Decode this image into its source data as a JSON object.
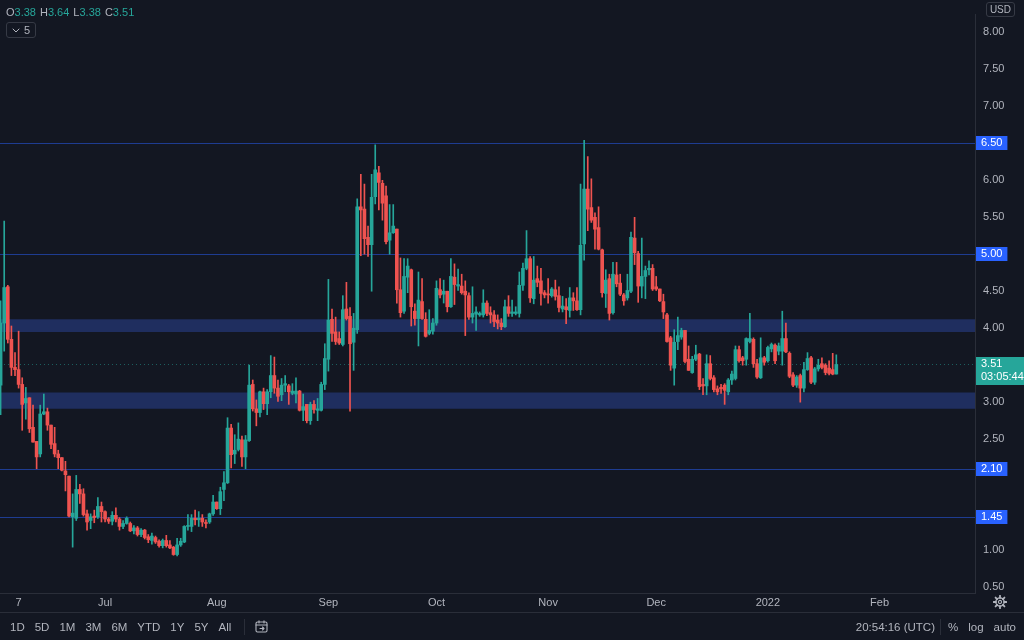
{
  "chart_data": {
    "type": "candlestick",
    "x": [
      "2021-06-02",
      "2021-06-03",
      "2021-06-04",
      "2021-06-05",
      "2021-06-06",
      "2021-06-07",
      "2021-06-08",
      "2021-06-09",
      "2021-06-10",
      "2021-06-11",
      "2021-06-12",
      "2021-06-13",
      "2021-06-14",
      "2021-06-15",
      "2021-06-16",
      "2021-06-17",
      "2021-06-18",
      "2021-06-19",
      "2021-06-20",
      "2021-06-21",
      "2021-06-22",
      "2021-06-23",
      "2021-06-24",
      "2021-06-25",
      "2021-06-26",
      "2021-06-27",
      "2021-06-28",
      "2021-06-29",
      "2021-06-30",
      "2021-07-01",
      "2021-07-02",
      "2021-07-03",
      "2021-07-04",
      "2021-07-05",
      "2021-07-06",
      "2021-07-07",
      "2021-07-08",
      "2021-07-09",
      "2021-07-10",
      "2021-07-11",
      "2021-07-12",
      "2021-07-13",
      "2021-07-14",
      "2021-07-15",
      "2021-07-16",
      "2021-07-17",
      "2021-07-18",
      "2021-07-19",
      "2021-07-20",
      "2021-07-21",
      "2021-07-22",
      "2021-07-23",
      "2021-07-24",
      "2021-07-25",
      "2021-07-26",
      "2021-07-27",
      "2021-07-28",
      "2021-07-29",
      "2021-07-30",
      "2021-07-31",
      "2021-08-01",
      "2021-08-02",
      "2021-08-03",
      "2021-08-04",
      "2021-08-05",
      "2021-08-06",
      "2021-08-07",
      "2021-08-08",
      "2021-08-09",
      "2021-08-10",
      "2021-08-11",
      "2021-08-12",
      "2021-08-13",
      "2021-08-14",
      "2021-08-15",
      "2021-08-16",
      "2021-08-17",
      "2021-08-18",
      "2021-08-19",
      "2021-08-20",
      "2021-08-21",
      "2021-08-22",
      "2021-08-23",
      "2021-08-24",
      "2021-08-25",
      "2021-08-26",
      "2021-08-27",
      "2021-08-28",
      "2021-08-29",
      "2021-08-30",
      "2021-08-31",
      "2021-09-01",
      "2021-09-02",
      "2021-09-03",
      "2021-09-04",
      "2021-09-05",
      "2021-09-06",
      "2021-09-07",
      "2021-09-08",
      "2021-09-09",
      "2021-09-10",
      "2021-09-11",
      "2021-09-12",
      "2021-09-13",
      "2021-09-14",
      "2021-09-15",
      "2021-09-16",
      "2021-09-17",
      "2021-09-18",
      "2021-09-19",
      "2021-09-20",
      "2021-09-21",
      "2021-09-22",
      "2021-09-23",
      "2021-09-24",
      "2021-09-25",
      "2021-09-26",
      "2021-09-27",
      "2021-09-28",
      "2021-09-29",
      "2021-09-30",
      "2021-10-01",
      "2021-10-02",
      "2021-10-03",
      "2021-10-04",
      "2021-10-05",
      "2021-10-06",
      "2021-10-07",
      "2021-10-08",
      "2021-10-09",
      "2021-10-10",
      "2021-10-11",
      "2021-10-12",
      "2021-10-13",
      "2021-10-14",
      "2021-10-15",
      "2021-10-16",
      "2021-10-17",
      "2021-10-18",
      "2021-10-19",
      "2021-10-20",
      "2021-10-21",
      "2021-10-22",
      "2021-10-23",
      "2021-10-24",
      "2021-10-25",
      "2021-10-26",
      "2021-10-27",
      "2021-10-28",
      "2021-10-29",
      "2021-10-30",
      "2021-10-31",
      "2021-11-01",
      "2021-11-02",
      "2021-11-03",
      "2021-11-04",
      "2021-11-05",
      "2021-11-06",
      "2021-11-07",
      "2021-11-08",
      "2021-11-09",
      "2021-11-10",
      "2021-11-11",
      "2021-11-12",
      "2021-11-13",
      "2021-11-14",
      "2021-11-15",
      "2021-11-16",
      "2021-11-17",
      "2021-11-18",
      "2021-11-19",
      "2021-11-20",
      "2021-11-21",
      "2021-11-22",
      "2021-11-23",
      "2021-11-24",
      "2021-11-25",
      "2021-11-26",
      "2021-11-27",
      "2021-11-28",
      "2021-11-29",
      "2021-11-30",
      "2021-12-01",
      "2021-12-02",
      "2021-12-03",
      "2021-12-04",
      "2021-12-05",
      "2021-12-06",
      "2021-12-07",
      "2021-12-08",
      "2021-12-09",
      "2021-12-10",
      "2021-12-11",
      "2021-12-12",
      "2021-12-13",
      "2021-12-14",
      "2021-12-15",
      "2021-12-16",
      "2021-12-17",
      "2021-12-18",
      "2021-12-19",
      "2021-12-20",
      "2021-12-21",
      "2021-12-22",
      "2021-12-23",
      "2021-12-24",
      "2021-12-25",
      "2021-12-26",
      "2021-12-27",
      "2021-12-28",
      "2021-12-29",
      "2021-12-30",
      "2021-12-31",
      "2022-01-01",
      "2022-01-02",
      "2022-01-03",
      "2022-01-04",
      "2022-01-05",
      "2022-01-06",
      "2022-01-07",
      "2022-01-08",
      "2022-01-09",
      "2022-01-10",
      "2022-01-11",
      "2022-01-12",
      "2022-01-13",
      "2022-01-14",
      "2022-01-15",
      "2022-01-16",
      "2022-01-17",
      "2022-01-18",
      "2022-01-19",
      "2022-01-20"
    ],
    "ohlc": [
      [
        3.23,
        4.37,
        2.83,
        4.07
      ],
      [
        4.07,
        5.45,
        3.69,
        4.55
      ],
      [
        4.56,
        4.58,
        3.8,
        3.85
      ],
      [
        3.85,
        4.03,
        3.36,
        3.47
      ],
      [
        3.47,
        3.67,
        3.36,
        3.44
      ],
      [
        3.44,
        3.96,
        3.19,
        3.24
      ],
      [
        3.24,
        3.33,
        2.62,
        2.97
      ],
      [
        2.99,
        3.2,
        2.77,
        3.05
      ],
      [
        3.06,
        3.06,
        2.59,
        2.64
      ],
      [
        2.66,
        2.96,
        2.46,
        2.46
      ],
      [
        2.47,
        2.47,
        2.1,
        2.26
      ],
      [
        2.3,
        2.96,
        2.26,
        2.84
      ],
      [
        2.84,
        3.11,
        2.83,
        2.87
      ],
      [
        2.87,
        2.92,
        2.62,
        2.69
      ],
      [
        2.69,
        2.69,
        2.37,
        2.43
      ],
      [
        2.44,
        2.66,
        2.26,
        2.3
      ],
      [
        2.3,
        2.35,
        2.1,
        2.25
      ],
      [
        2.25,
        2.25,
        2.07,
        2.08
      ],
      [
        2.07,
        2.2,
        1.8,
        2.02
      ],
      [
        2.0,
        2.0,
        1.45,
        1.46
      ],
      [
        1.45,
        1.76,
        1.04,
        1.5
      ],
      [
        1.43,
        2.01,
        1.4,
        1.82
      ],
      [
        1.82,
        1.89,
        1.63,
        1.76
      ],
      [
        1.76,
        1.83,
        1.46,
        1.48
      ],
      [
        1.49,
        1.54,
        1.27,
        1.38
      ],
      [
        1.4,
        1.49,
        1.29,
        1.45
      ],
      [
        1.46,
        1.54,
        1.37,
        1.44
      ],
      [
        1.45,
        1.71,
        1.43,
        1.59
      ],
      [
        1.59,
        1.65,
        1.38,
        1.52
      ],
      [
        1.52,
        1.53,
        1.38,
        1.42
      ],
      [
        1.42,
        1.44,
        1.36,
        1.39
      ],
      [
        1.39,
        1.52,
        1.34,
        1.47
      ],
      [
        1.47,
        1.57,
        1.38,
        1.42
      ],
      [
        1.42,
        1.44,
        1.27,
        1.32
      ],
      [
        1.32,
        1.4,
        1.29,
        1.36
      ],
      [
        1.36,
        1.45,
        1.35,
        1.43
      ],
      [
        1.36,
        1.38,
        1.25,
        1.26
      ],
      [
        1.26,
        1.33,
        1.22,
        1.3
      ],
      [
        1.3,
        1.32,
        1.19,
        1.21
      ],
      [
        1.21,
        1.29,
        1.18,
        1.27
      ],
      [
        1.27,
        1.28,
        1.15,
        1.17
      ],
      [
        1.18,
        1.21,
        1.1,
        1.14
      ],
      [
        1.13,
        1.23,
        1.08,
        1.19
      ],
      [
        1.17,
        1.19,
        1.09,
        1.11
      ],
      [
        1.12,
        1.14,
        1.04,
        1.06
      ],
      [
        1.06,
        1.15,
        1.03,
        1.13
      ],
      [
        1.13,
        1.2,
        1.04,
        1.06
      ],
      [
        1.07,
        1.13,
        1.02,
        1.03
      ],
      [
        1.04,
        1.05,
        0.93,
        0.94
      ],
      [
        0.94,
        1.16,
        0.92,
        1.07
      ],
      [
        1.07,
        1.16,
        1.05,
        1.12
      ],
      [
        1.11,
        1.33,
        1.1,
        1.32
      ],
      [
        1.32,
        1.48,
        1.27,
        1.33
      ],
      [
        1.32,
        1.48,
        1.25,
        1.43
      ],
      [
        1.43,
        1.54,
        1.34,
        1.41
      ],
      [
        1.41,
        1.52,
        1.32,
        1.43
      ],
      [
        1.43,
        1.48,
        1.32,
        1.38
      ],
      [
        1.37,
        1.41,
        1.3,
        1.36
      ],
      [
        1.38,
        1.5,
        1.36,
        1.49
      ],
      [
        1.49,
        1.74,
        1.47,
        1.65
      ],
      [
        1.65,
        1.65,
        1.55,
        1.56
      ],
      [
        1.56,
        1.85,
        1.48,
        1.79
      ],
      [
        1.82,
        2.06,
        1.67,
        1.91
      ],
      [
        1.91,
        2.79,
        1.9,
        2.65
      ],
      [
        2.65,
        2.7,
        2.11,
        2.29
      ],
      [
        2.3,
        2.56,
        2.17,
        2.35
      ],
      [
        2.36,
        2.72,
        2.34,
        2.5
      ],
      [
        2.49,
        2.54,
        2.13,
        2.26
      ],
      [
        2.26,
        2.55,
        2.1,
        2.49
      ],
      [
        2.48,
        3.5,
        2.47,
        3.23
      ],
      [
        3.24,
        3.3,
        2.88,
        2.91
      ],
      [
        2.91,
        3.03,
        2.68,
        2.86
      ],
      [
        2.86,
        3.15,
        2.8,
        3.14
      ],
      [
        3.14,
        3.19,
        2.9,
        2.98
      ],
      [
        2.98,
        3.17,
        2.83,
        3.14
      ],
      [
        3.14,
        3.63,
        3.06,
        3.36
      ],
      [
        3.36,
        3.61,
        3.12,
        3.19
      ],
      [
        3.19,
        3.3,
        3.01,
        3.08
      ],
      [
        3.1,
        3.32,
        3.02,
        3.23
      ],
      [
        3.23,
        3.36,
        3.14,
        3.25
      ],
      [
        3.22,
        3.24,
        2.97,
        3.14
      ],
      [
        3.12,
        3.25,
        3.1,
        3.15
      ],
      [
        3.11,
        3.33,
        2.99,
        3.15
      ],
      [
        3.15,
        3.16,
        2.88,
        2.89
      ],
      [
        2.89,
        3.11,
        2.75,
        2.94
      ],
      [
        2.97,
        2.97,
        2.72,
        2.75
      ],
      [
        2.75,
        3.0,
        2.7,
        2.97
      ],
      [
        2.97,
        3.02,
        2.85,
        2.9
      ],
      [
        2.89,
        3.05,
        2.75,
        2.91
      ],
      [
        2.89,
        3.27,
        2.88,
        3.24
      ],
      [
        3.24,
        3.79,
        3.17,
        3.59
      ],
      [
        3.58,
        4.66,
        3.42,
        4.11
      ],
      [
        4.12,
        4.26,
        3.82,
        3.93
      ],
      [
        3.95,
        4.15,
        3.78,
        3.82
      ],
      [
        3.86,
        3.95,
        3.78,
        3.8
      ],
      [
        3.78,
        4.44,
        3.76,
        4.25
      ],
      [
        4.26,
        4.62,
        4.11,
        4.13
      ],
      [
        4.16,
        4.28,
        2.88,
        3.79
      ],
      [
        3.81,
        4.2,
        3.43,
        4.0
      ],
      [
        3.98,
        5.75,
        3.93,
        5.64
      ],
      [
        5.64,
        6.08,
        4.98,
        5.6
      ],
      [
        5.61,
        5.95,
        5.0,
        5.21
      ],
      [
        5.23,
        5.38,
        4.97,
        5.13
      ],
      [
        5.13,
        6.08,
        4.5,
        5.77
      ],
      [
        5.78,
        6.48,
        5.68,
        6.14
      ],
      [
        6.1,
        6.19,
        5.6,
        5.97
      ],
      [
        5.96,
        6.0,
        5.46,
        5.69
      ],
      [
        5.79,
        5.92,
        5.14,
        5.17
      ],
      [
        5.19,
        5.67,
        5.0,
        5.29
      ],
      [
        5.29,
        5.67,
        5.28,
        5.38
      ],
      [
        5.34,
        5.34,
        4.34,
        4.52
      ],
      [
        4.52,
        4.95,
        4.15,
        4.21
      ],
      [
        4.23,
        4.94,
        4.2,
        4.7
      ],
      [
        4.69,
        4.94,
        4.48,
        4.84
      ],
      [
        4.79,
        4.8,
        4.03,
        4.29
      ],
      [
        4.23,
        4.33,
        4.04,
        4.13
      ],
      [
        4.13,
        4.76,
        3.76,
        4.38
      ],
      [
        4.36,
        4.67,
        4.12,
        4.13
      ],
      [
        4.12,
        4.21,
        3.88,
        3.89
      ],
      [
        3.93,
        4.25,
        3.91,
        3.97
      ],
      [
        3.96,
        4.13,
        3.92,
        4.07
      ],
      [
        4.07,
        4.64,
        4.04,
        4.54
      ],
      [
        4.52,
        4.67,
        4.41,
        4.45
      ],
      [
        4.46,
        4.65,
        4.34,
        4.5
      ],
      [
        4.5,
        4.5,
        4.22,
        4.29
      ],
      [
        4.29,
        4.94,
        4.28,
        4.7
      ],
      [
        4.69,
        4.87,
        4.32,
        4.59
      ],
      [
        4.57,
        4.8,
        4.51,
        4.59
      ],
      [
        4.57,
        4.73,
        4.46,
        4.48
      ],
      [
        4.5,
        4.64,
        3.9,
        4.45
      ],
      [
        4.44,
        4.48,
        4.12,
        4.15
      ],
      [
        4.15,
        4.56,
        4.07,
        4.2
      ],
      [
        4.19,
        4.29,
        3.97,
        4.22
      ],
      [
        4.18,
        4.22,
        4.16,
        4.2
      ],
      [
        4.18,
        4.52,
        4.15,
        4.34
      ],
      [
        4.34,
        4.37,
        4.17,
        4.2
      ],
      [
        4.21,
        4.29,
        4.07,
        4.18
      ],
      [
        4.18,
        4.24,
        4.02,
        4.09
      ],
      [
        4.11,
        4.18,
        3.99,
        4.07
      ],
      [
        4.07,
        4.13,
        3.98,
        4.02
      ],
      [
        4.02,
        4.38,
        4.01,
        4.29
      ],
      [
        4.29,
        4.44,
        4.16,
        4.2
      ],
      [
        4.2,
        4.38,
        4.16,
        4.22
      ],
      [
        4.2,
        4.29,
        4.18,
        4.22
      ],
      [
        4.2,
        4.76,
        4.15,
        4.58
      ],
      [
        4.58,
        4.88,
        4.51,
        4.81
      ],
      [
        4.81,
        5.32,
        4.79,
        4.94
      ],
      [
        4.94,
        4.97,
        4.35,
        4.41
      ],
      [
        4.4,
        4.97,
        4.33,
        4.65
      ],
      [
        4.67,
        4.84,
        4.56,
        4.62
      ],
      [
        4.64,
        4.81,
        4.31,
        4.47
      ],
      [
        4.48,
        4.51,
        4.41,
        4.45
      ],
      [
        4.46,
        4.67,
        4.34,
        4.45
      ],
      [
        4.44,
        4.55,
        4.42,
        4.53
      ],
      [
        4.52,
        4.65,
        4.38,
        4.43
      ],
      [
        4.44,
        4.56,
        4.22,
        4.28
      ],
      [
        4.26,
        4.43,
        4.22,
        4.3
      ],
      [
        4.29,
        4.4,
        4.06,
        4.25
      ],
      [
        4.24,
        4.55,
        4.15,
        4.41
      ],
      [
        4.41,
        4.48,
        4.24,
        4.37
      ],
      [
        4.37,
        4.55,
        4.24,
        4.25
      ],
      [
        4.25,
        5.95,
        4.18,
        5.12
      ],
      [
        5.14,
        6.54,
        4.92,
        5.88
      ],
      [
        5.88,
        6.32,
        5.32,
        5.61
      ],
      [
        5.63,
        6.02,
        5.43,
        5.46
      ],
      [
        5.5,
        5.56,
        5.07,
        5.34
      ],
      [
        5.36,
        5.64,
        5.06,
        5.07
      ],
      [
        5.06,
        5.07,
        4.42,
        4.48
      ],
      [
        4.47,
        4.79,
        4.28,
        4.65
      ],
      [
        4.67,
        4.73,
        4.11,
        4.2
      ],
      [
        4.21,
        4.89,
        4.19,
        4.73
      ],
      [
        4.72,
        4.89,
        4.56,
        4.6
      ],
      [
        4.61,
        4.73,
        4.44,
        4.46
      ],
      [
        4.45,
        4.47,
        4.31,
        4.37
      ],
      [
        4.41,
        4.73,
        4.38,
        4.51
      ],
      [
        4.5,
        5.3,
        4.48,
        5.23
      ],
      [
        5.22,
        5.5,
        4.86,
        5.02
      ],
      [
        5.01,
        5.04,
        4.35,
        4.57
      ],
      [
        4.57,
        5.22,
        4.41,
        4.7
      ],
      [
        4.7,
        4.84,
        4.4,
        4.78
      ],
      [
        4.79,
        4.91,
        4.72,
        4.81
      ],
      [
        4.81,
        4.86,
        4.51,
        4.53
      ],
      [
        4.56,
        4.7,
        4.51,
        4.53
      ],
      [
        4.53,
        4.53,
        4.36,
        4.37
      ],
      [
        4.36,
        4.46,
        4.13,
        4.22
      ],
      [
        4.18,
        4.2,
        3.81,
        3.82
      ],
      [
        3.87,
        3.89,
        3.43,
        3.5
      ],
      [
        3.46,
        3.98,
        3.23,
        3.81
      ],
      [
        3.82,
        4.15,
        3.71,
        3.9
      ],
      [
        3.88,
        4.0,
        3.85,
        3.97
      ],
      [
        3.97,
        3.97,
        3.53,
        3.55
      ],
      [
        3.58,
        3.76,
        3.43,
        3.43
      ],
      [
        3.4,
        3.62,
        3.39,
        3.58
      ],
      [
        3.58,
        3.77,
        3.56,
        3.64
      ],
      [
        3.65,
        3.66,
        3.17,
        3.21
      ],
      [
        3.24,
        3.32,
        3.1,
        3.22
      ],
      [
        3.22,
        3.64,
        3.1,
        3.52
      ],
      [
        3.52,
        3.63,
        3.3,
        3.32
      ],
      [
        3.33,
        3.36,
        3.14,
        3.17
      ],
      [
        3.18,
        3.22,
        3.1,
        3.14
      ],
      [
        3.2,
        3.24,
        3.12,
        3.18
      ],
      [
        3.23,
        3.25,
        2.97,
        3.16
      ],
      [
        3.14,
        3.32,
        3.1,
        3.3
      ],
      [
        3.3,
        3.42,
        3.24,
        3.38
      ],
      [
        3.32,
        3.76,
        3.3,
        3.71
      ],
      [
        3.71,
        3.76,
        3.54,
        3.56
      ],
      [
        3.6,
        3.62,
        3.5,
        3.56
      ],
      [
        3.58,
        3.87,
        3.5,
        3.86
      ],
      [
        3.82,
        4.2,
        3.8,
        3.86
      ],
      [
        3.85,
        3.87,
        3.47,
        3.52
      ],
      [
        3.52,
        3.58,
        3.32,
        3.34
      ],
      [
        3.33,
        3.87,
        3.32,
        3.6
      ],
      [
        3.6,
        3.62,
        3.5,
        3.54
      ],
      [
        3.56,
        3.76,
        3.54,
        3.74
      ],
      [
        3.72,
        3.8,
        3.68,
        3.78
      ],
      [
        3.77,
        3.79,
        3.52,
        3.56
      ],
      [
        3.69,
        3.8,
        3.64,
        3.76
      ],
      [
        3.69,
        4.23,
        3.5,
        3.86
      ],
      [
        3.86,
        4.07,
        3.67,
        3.68
      ],
      [
        3.66,
        3.68,
        3.33,
        3.35
      ],
      [
        3.37,
        3.4,
        3.21,
        3.23
      ],
      [
        3.23,
        3.36,
        3.2,
        3.34
      ],
      [
        3.36,
        3.38,
        3.0,
        3.19
      ],
      [
        3.19,
        3.54,
        3.14,
        3.44
      ],
      [
        3.44,
        3.67,
        3.43,
        3.59
      ],
      [
        3.6,
        3.62,
        3.25,
        3.27
      ],
      [
        3.27,
        3.47,
        3.24,
        3.45
      ],
      [
        3.45,
        3.58,
        3.42,
        3.5
      ],
      [
        3.52,
        3.6,
        3.45,
        3.47
      ],
      [
        3.5,
        3.52,
        3.37,
        3.4
      ],
      [
        3.46,
        3.56,
        3.37,
        3.39
      ],
      [
        3.44,
        3.66,
        3.37,
        3.38
      ],
      [
        3.38,
        3.64,
        3.38,
        3.51
      ]
    ],
    "xlim": [
      "2021-06-01T20:00",
      "2022-02-27T12:00"
    ],
    "xticks": [
      {
        "value": "2021-06-07",
        "label": "7"
      },
      {
        "value": "2021-07-01",
        "label": "Jul"
      },
      {
        "value": "2021-08-01",
        "label": "Aug"
      },
      {
        "value": "2021-09-01",
        "label": "Sep"
      },
      {
        "value": "2021-10-01",
        "label": "Oct"
      },
      {
        "value": "2021-11-01",
        "label": "Nov"
      },
      {
        "value": "2021-12-01",
        "label": "Dec"
      },
      {
        "value": "2022-01-01",
        "label": "2022"
      },
      {
        "value": "2022-02-01",
        "label": "Feb"
      }
    ],
    "ylim": [
      0.42,
      8.24
    ],
    "yticks": [
      {
        "value": 0.5,
        "label": "0.50"
      },
      {
        "value": 1,
        "label": "1.00"
      },
      {
        "value": 2.5,
        "label": "2.50"
      },
      {
        "value": 3,
        "label": "3.00"
      },
      {
        "value": 4,
        "label": "4.00"
      },
      {
        "value": 4.5,
        "label": "4.50"
      },
      {
        "value": 5.5,
        "label": "5.50"
      },
      {
        "value": 6,
        "label": "6.00"
      },
      {
        "value": 7,
        "label": "7.00"
      },
      {
        "value": 7.5,
        "label": "7.50"
      },
      {
        "value": 8,
        "label": "8.00"
      }
    ],
    "bands": [
      {
        "axis": "y",
        "from": 3.95,
        "to": 4.12,
        "color": "#1f2e5f"
      },
      {
        "axis": "y",
        "from": 2.91,
        "to": 3.13,
        "color": "#1f2e5f"
      }
    ],
    "ref_lines": [
      {
        "axis": "y",
        "value": 6.5,
        "label": "6.50",
        "color": "#2962ff"
      },
      {
        "axis": "y",
        "value": 5,
        "label": "5.00",
        "color": "#2962ff"
      },
      {
        "axis": "y",
        "value": 2.1,
        "label": "2.10",
        "color": "#2962ff"
      },
      {
        "axis": "y",
        "value": 1.45,
        "label": "1.45",
        "color": "#2962ff"
      },
      {
        "axis": "y",
        "value": 3.51,
        "label": "3.51",
        "color": "#26a69a",
        "line_style": "dotted"
      }
    ],
    "annotations": [
      "O3.38 H3.64 L3.38 C3.51",
      "5",
      "USD",
      "03:05:44",
      "1D",
      "5D",
      "1M",
      "3M",
      "6M",
      "YTD",
      "1Y",
      "5Y",
      "All",
      "20:54:16 (UTC)",
      "%",
      "log",
      "auto"
    ]
  }
}
